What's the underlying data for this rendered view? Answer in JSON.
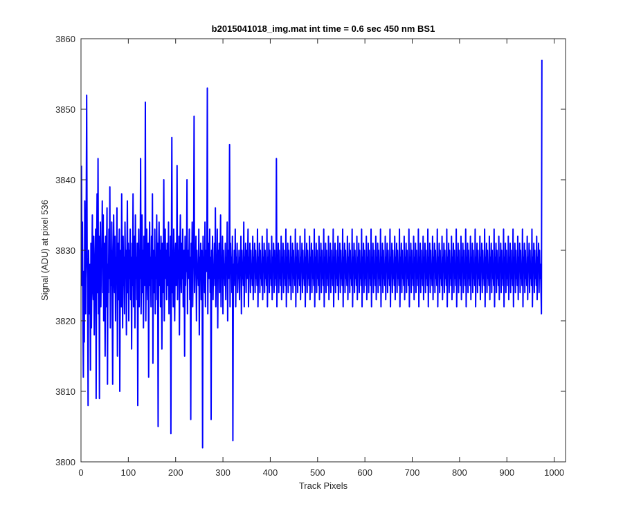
{
  "chart_data": {
    "type": "line",
    "title": "b2015041018_img.mat int time = 0.6 sec  450 nm BS1",
    "xlabel": "Track Pixels",
    "ylabel": "Signal (ADU) at pixel 536",
    "xlim": [
      0,
      1024
    ],
    "ylim": [
      3800,
      3860
    ],
    "xticks": [
      0,
      100,
      200,
      300,
      400,
      500,
      600,
      700,
      800,
      900,
      1000
    ],
    "yticks": [
      3800,
      3810,
      3820,
      3830,
      3840,
      3850,
      3860
    ],
    "grid": false,
    "legend": "none",
    "series": [
      {
        "color": "#0000ff",
        "x_start": 1,
        "x_step": 1,
        "values": [
          3842,
          3825,
          3834,
          3822,
          3812,
          3827,
          3817,
          3837,
          3823,
          3821,
          3835,
          3852,
          3829,
          3826,
          3808,
          3830,
          3824,
          3821,
          3828,
          3813,
          3831,
          3819,
          3827,
          3835,
          3825,
          3823,
          3832,
          3818,
          3826,
          3829,
          3833,
          3809,
          3828,
          3838,
          3824,
          3843,
          3821,
          3832,
          3809,
          3827,
          3834,
          3822,
          3829,
          3828,
          3837,
          3824,
          3835,
          3820,
          3831,
          3827,
          3815,
          3832,
          3822,
          3830,
          3836,
          3811,
          3828,
          3824,
          3833,
          3826,
          3839,
          3819,
          3830,
          3825,
          3834,
          3822,
          3811,
          3828,
          3835,
          3827,
          3824,
          3832,
          3820,
          3829,
          3826,
          3836,
          3815,
          3831,
          3823,
          3828,
          3833,
          3810,
          3826,
          3830,
          3822,
          3838,
          3827,
          3819,
          3832,
          3825,
          3829,
          3821,
          3834,
          3826,
          3830,
          3818,
          3828,
          3837,
          3824,
          3831,
          3820,
          3830,
          3826,
          3833,
          3823,
          3829,
          3816,
          3831,
          3825,
          3838,
          3822,
          3828,
          3832,
          3819,
          3835,
          3826,
          3829,
          3823,
          3831,
          3808,
          3827,
          3833,
          3822,
          3830,
          3826,
          3843,
          3821,
          3828,
          3835,
          3824,
          3830,
          3819,
          3832,
          3827,
          3825,
          3851,
          3820,
          3829,
          3833,
          3826,
          3823,
          3831,
          3812,
          3828,
          3834,
          3825,
          3829,
          3822,
          3832,
          3826,
          3838,
          3814,
          3830,
          3827,
          3824,
          3833,
          3821,
          3829,
          3826,
          3835,
          3823,
          3831,
          3805,
          3828,
          3834,
          3825,
          3830,
          3822,
          3832,
          3827,
          3816,
          3831,
          3824,
          3829,
          3840,
          3820,
          3828,
          3833,
          3826,
          3830,
          3823,
          3831,
          3827,
          3825,
          3834,
          3821,
          3829,
          3826,
          3832,
          3804,
          3828,
          3846,
          3824,
          3830,
          3822,
          3833,
          3827,
          3820,
          3829,
          3831,
          3825,
          3828,
          3842,
          3823,
          3830,
          3826,
          3832,
          3818,
          3829,
          3835,
          3827,
          3824,
          3831,
          3826,
          3833,
          3822,
          3828,
          3830,
          3815,
          3832,
          3825,
          3829,
          3827,
          3840,
          3821,
          3830,
          3826,
          3828,
          3833,
          3823,
          3829,
          3806,
          3831,
          3826,
          3834,
          3822,
          3828,
          3830,
          3849,
          3824,
          3829,
          3827,
          3832,
          3820,
          3830,
          3826,
          3828,
          3825,
          3833,
          3818,
          3829,
          3827,
          3831,
          3823,
          3830,
          3828,
          3802,
          3832,
          3826,
          3829,
          3824,
          3834,
          3822,
          3830,
          3827,
          3829,
          3853,
          3821,
          3831,
          3826,
          3828,
          3833,
          3824,
          3829,
          3806,
          3830,
          3827,
          3832,
          3823,
          3828,
          3826,
          3831,
          3825,
          3836,
          3822,
          3829,
          3827,
          3833,
          3819,
          3830,
          3826,
          3831,
          3824,
          3828,
          3835,
          3822,
          3829,
          3827,
          3832,
          3821,
          3830,
          3826,
          3828,
          3825,
          3831,
          3823,
          3829,
          3827,
          3834,
          3820,
          3830,
          3826,
          3828,
          3845,
          3822,
          3831,
          3827,
          3829,
          3824,
          3832,
          3803,
          3828,
          3826,
          3830,
          3825,
          3833,
          3822,
          3829,
          3827,
          3831,
          3824,
          3828,
          3826,
          3830,
          3823,
          3829,
          3827,
          3832,
          3821,
          3830,
          3826,
          3828,
          3825,
          3834,
          3822,
          3829,
          3827,
          3831,
          3824,
          3830,
          3826,
          3828,
          3833,
          3822,
          3829,
          3827,
          3831,
          3824,
          3830,
          3826,
          3828,
          3825,
          3832,
          3823,
          3829,
          3827,
          3831,
          3824,
          3830,
          3826,
          3828,
          3825,
          3833,
          3822,
          3829,
          3827,
          3831,
          3824,
          3830,
          3826,
          3828,
          3825,
          3832,
          3823,
          3829,
          3827,
          3831,
          3824,
          3830,
          3826,
          3828,
          3825,
          3833,
          3822,
          3829,
          3827,
          3831,
          3824,
          3830,
          3826,
          3828,
          3825,
          3832,
          3823,
          3829,
          3827,
          3831,
          3824,
          3830,
          3826,
          3828,
          3825,
          3843,
          3822,
          3829,
          3827,
          3831,
          3824,
          3830,
          3826,
          3828,
          3825,
          3832,
          3823,
          3829,
          3827,
          3831,
          3824,
          3830,
          3826,
          3828,
          3825,
          3833,
          3822,
          3829,
          3827,
          3831,
          3824,
          3830,
          3826,
          3828,
          3825,
          3832,
          3823,
          3829,
          3827,
          3831,
          3824,
          3830,
          3826,
          3828,
          3825,
          3833,
          3822,
          3829,
          3827,
          3831,
          3824,
          3830,
          3826,
          3828,
          3825,
          3832,
          3823,
          3829,
          3827,
          3831,
          3824,
          3830,
          3826,
          3828,
          3825,
          3833,
          3822,
          3829,
          3827,
          3831,
          3824,
          3830,
          3826,
          3828,
          3825,
          3832,
          3823,
          3829,
          3827,
          3831,
          3824,
          3830,
          3826,
          3828,
          3825,
          3833,
          3822,
          3829,
          3827,
          3831,
          3824,
          3830,
          3826,
          3828,
          3825,
          3832,
          3823,
          3829,
          3827,
          3831,
          3824,
          3830,
          3826,
          3828,
          3825,
          3833,
          3822,
          3829,
          3827,
          3831,
          3824,
          3830,
          3826,
          3828,
          3825,
          3832,
          3823,
          3829,
          3827,
          3831,
          3824,
          3830,
          3826,
          3828,
          3825,
          3833,
          3822,
          3829,
          3827,
          3831,
          3824,
          3830,
          3826,
          3828,
          3825,
          3832,
          3823,
          3829,
          3827,
          3831,
          3824,
          3830,
          3826,
          3828,
          3825,
          3833,
          3822,
          3829,
          3827,
          3831,
          3824,
          3830,
          3826,
          3828,
          3825,
          3832,
          3823,
          3829,
          3827,
          3831,
          3824,
          3830,
          3826,
          3828,
          3825,
          3833,
          3822,
          3829,
          3827,
          3831,
          3824,
          3830,
          3826,
          3828,
          3825,
          3832,
          3823,
          3829,
          3827,
          3831,
          3824,
          3830,
          3826,
          3828,
          3825,
          3833,
          3822,
          3829,
          3827,
          3831,
          3824,
          3830,
          3826,
          3828,
          3825,
          3832,
          3823,
          3829,
          3827,
          3831,
          3824,
          3830,
          3826,
          3828,
          3825,
          3833,
          3822,
          3829,
          3827,
          3831,
          3824,
          3830,
          3826,
          3828,
          3825,
          3832,
          3823,
          3829,
          3827,
          3831,
          3824,
          3830,
          3826,
          3828,
          3825,
          3833,
          3822,
          3829,
          3827,
          3831,
          3824,
          3830,
          3826,
          3828,
          3825,
          3832,
          3823,
          3829,
          3827,
          3831,
          3824,
          3830,
          3826,
          3828,
          3825,
          3833,
          3822,
          3829,
          3827,
          3831,
          3824,
          3830,
          3826,
          3828,
          3825,
          3832,
          3823,
          3829,
          3827,
          3831,
          3824,
          3830,
          3826,
          3828,
          3825,
          3833,
          3822,
          3829,
          3827,
          3831,
          3824,
          3830,
          3826,
          3828,
          3825,
          3832,
          3823,
          3829,
          3827,
          3831,
          3824,
          3830,
          3826,
          3828,
          3825,
          3833,
          3822,
          3829,
          3827,
          3831,
          3824,
          3830,
          3826,
          3828,
          3825,
          3832,
          3823,
          3829,
          3827,
          3831,
          3824,
          3830,
          3826,
          3828,
          3825,
          3833,
          3822,
          3829,
          3827,
          3831,
          3824,
          3830,
          3826,
          3828,
          3825,
          3832,
          3823,
          3829,
          3827,
          3831,
          3824,
          3830,
          3826,
          3828,
          3825,
          3833,
          3822,
          3829,
          3827,
          3831,
          3824,
          3830,
          3826,
          3828,
          3825,
          3832,
          3823,
          3829,
          3827,
          3831,
          3824,
          3830,
          3826,
          3828,
          3825,
          3833,
          3822,
          3829,
          3827,
          3831,
          3824,
          3830,
          3826,
          3828,
          3825,
          3832,
          3823,
          3829,
          3827,
          3831,
          3824,
          3830,
          3826,
          3828,
          3825,
          3833,
          3822,
          3829,
          3827,
          3831,
          3824,
          3830,
          3826,
          3828,
          3825,
          3832,
          3823,
          3829,
          3827,
          3831,
          3824,
          3830,
          3826,
          3828,
          3825,
          3833,
          3822,
          3829,
          3827,
          3831,
          3824,
          3830,
          3826,
          3828,
          3825,
          3832,
          3823,
          3829,
          3827,
          3831,
          3824,
          3830,
          3826,
          3828,
          3825,
          3833,
          3822,
          3829,
          3827,
          3831,
          3824,
          3830,
          3826,
          3828,
          3825,
          3832,
          3823,
          3829,
          3827,
          3831,
          3824,
          3830,
          3826,
          3828,
          3825,
          3833,
          3822,
          3829,
          3827,
          3831,
          3824,
          3830,
          3826,
          3828,
          3825,
          3832,
          3823,
          3829,
          3827,
          3831,
          3824,
          3830,
          3826,
          3828,
          3825,
          3833,
          3822,
          3829,
          3827,
          3831,
          3824,
          3830,
          3826,
          3828,
          3825,
          3832,
          3823,
          3829,
          3827,
          3831,
          3824,
          3830,
          3826,
          3828,
          3825,
          3833,
          3822,
          3829,
          3827,
          3831,
          3824,
          3830,
          3826,
          3828,
          3825,
          3832,
          3823,
          3829,
          3827,
          3831,
          3824,
          3830,
          3826,
          3828,
          3825,
          3833,
          3822,
          3829,
          3827,
          3831,
          3824,
          3830,
          3826,
          3828,
          3825,
          3832,
          3823,
          3829,
          3827,
          3831,
          3824,
          3830,
          3826,
          3828,
          3825,
          3833,
          3822,
          3829,
          3827,
          3831,
          3824,
          3830,
          3826,
          3828,
          3825,
          3832,
          3823,
          3829,
          3827,
          3831,
          3824,
          3830,
          3826,
          3828,
          3825,
          3833,
          3822,
          3829,
          3827,
          3831,
          3824,
          3830,
          3826,
          3828,
          3825,
          3832,
          3823,
          3829,
          3827,
          3831,
          3824,
          3830,
          3826,
          3828,
          3825,
          3833,
          3822,
          3829,
          3827,
          3831,
          3824,
          3830,
          3826,
          3828,
          3825,
          3832,
          3823,
          3829,
          3827,
          3831,
          3824,
          3830,
          3826,
          3828,
          3825,
          3821,
          3857
        ]
      }
    ]
  }
}
